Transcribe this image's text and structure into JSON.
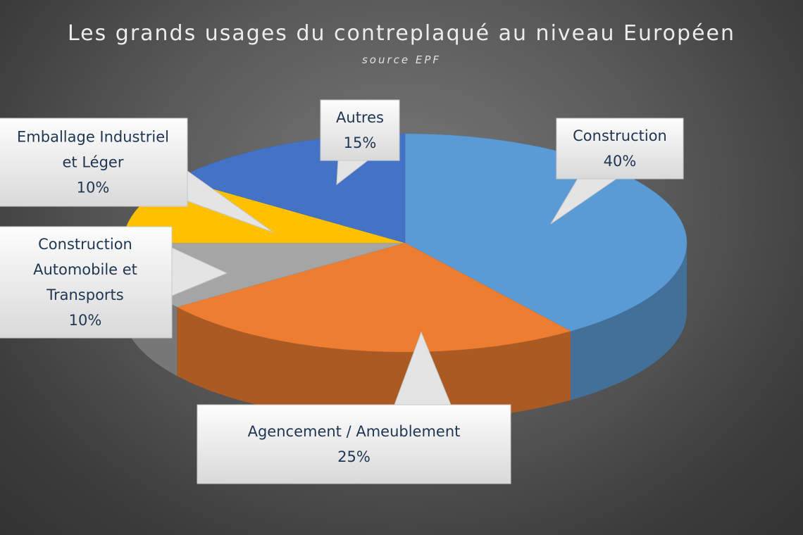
{
  "chart_data": {
    "type": "pie",
    "title": "Les grands usages du contreplaqué au niveau Européen",
    "subtitle": "source EPF",
    "legend": "none",
    "slices": [
      {
        "name": "Construction",
        "value": 40,
        "label": "40%",
        "label_lines": [
          "Construction"
        ],
        "color": "#5b9bd5"
      },
      {
        "name": "Agencement / Ameublement",
        "value": 25,
        "label": "25%",
        "label_lines": [
          "Agencement / Ameublement"
        ],
        "color": "#ed7d31"
      },
      {
        "name": "Construction Automobile et Transports",
        "value": 10,
        "label": "10%",
        "label_lines": [
          "Construction",
          "Automobile et",
          "Transports"
        ],
        "color": "#a5a5a5"
      },
      {
        "name": "Emballage Industriel et Léger",
        "value": 10,
        "label": "10%",
        "label_lines": [
          "Emballage Industriel",
          "et Léger"
        ],
        "color": "#ffc000"
      },
      {
        "name": "Autres",
        "value": 15,
        "label": "15%",
        "label_lines": [
          "Autres"
        ],
        "color": "#4472c4"
      }
    ]
  }
}
